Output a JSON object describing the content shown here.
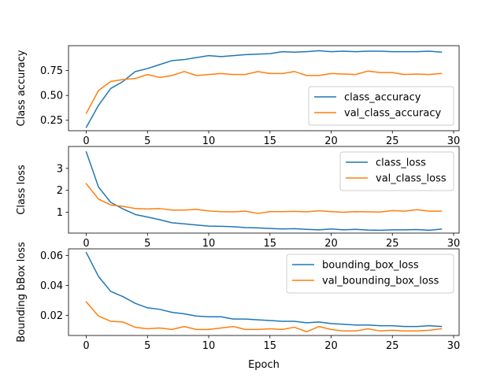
{
  "chart_data": [
    {
      "type": "line",
      "xlabel": "",
      "ylabel": "Class accuracy",
      "xlim": [
        -1.45,
        30.45
      ],
      "ylim": [
        0.145,
        1.0
      ],
      "xticks": [
        0,
        5,
        10,
        15,
        20,
        25,
        30
      ],
      "xtick_labels": [
        "0",
        "5",
        "10",
        "15",
        "20",
        "25",
        "30"
      ],
      "yticks": [
        0.25,
        0.5,
        0.75
      ],
      "ytick_labels": [
        "0.25",
        "0.50",
        "0.75"
      ],
      "legend": "lower right",
      "grid": false,
      "x": [
        0,
        1,
        2,
        3,
        4,
        5,
        6,
        7,
        8,
        9,
        10,
        11,
        12,
        13,
        14,
        15,
        16,
        17,
        18,
        19,
        20,
        21,
        22,
        23,
        24,
        25,
        26,
        27,
        28,
        29
      ],
      "series": [
        {
          "name": "class_accuracy",
          "color": "#1f77b4",
          "values": [
            0.18,
            0.4,
            0.57,
            0.64,
            0.74,
            0.77,
            0.81,
            0.85,
            0.86,
            0.88,
            0.9,
            0.89,
            0.9,
            0.91,
            0.915,
            0.92,
            0.94,
            0.935,
            0.94,
            0.95,
            0.94,
            0.945,
            0.94,
            0.945,
            0.945,
            0.94,
            0.94,
            0.94,
            0.945,
            0.935
          ]
        },
        {
          "name": "val_class_accuracy",
          "color": "#ff7f0e",
          "values": [
            0.32,
            0.55,
            0.64,
            0.66,
            0.67,
            0.71,
            0.68,
            0.7,
            0.74,
            0.7,
            0.71,
            0.72,
            0.71,
            0.71,
            0.74,
            0.72,
            0.72,
            0.74,
            0.7,
            0.7,
            0.72,
            0.715,
            0.71,
            0.745,
            0.73,
            0.73,
            0.71,
            0.715,
            0.71,
            0.72
          ]
        }
      ]
    },
    {
      "type": "line",
      "xlabel": "",
      "ylabel": "Class loss",
      "xlim": [
        -1.45,
        30.45
      ],
      "ylim": [
        0.05,
        4.0
      ],
      "xticks": [
        0,
        5,
        10,
        15,
        20,
        25,
        30
      ],
      "xtick_labels": [
        "0",
        "5",
        "10",
        "15",
        "20",
        "25",
        "30"
      ],
      "yticks": [
        1,
        2,
        3
      ],
      "ytick_labels": [
        "1",
        "2",
        "3"
      ],
      "legend": "upper right",
      "grid": false,
      "x": [
        0,
        1,
        2,
        3,
        4,
        5,
        6,
        7,
        8,
        9,
        10,
        11,
        12,
        13,
        14,
        15,
        16,
        17,
        18,
        19,
        20,
        21,
        22,
        23,
        24,
        25,
        26,
        27,
        28,
        29
      ],
      "series": [
        {
          "name": "class_loss",
          "color": "#1f77b4",
          "values": [
            3.75,
            2.15,
            1.45,
            1.15,
            0.9,
            0.78,
            0.66,
            0.52,
            0.47,
            0.42,
            0.37,
            0.36,
            0.34,
            0.3,
            0.29,
            0.26,
            0.24,
            0.25,
            0.22,
            0.2,
            0.24,
            0.2,
            0.22,
            0.19,
            0.18,
            0.2,
            0.2,
            0.21,
            0.18,
            0.23
          ]
        },
        {
          "name": "val_class_loss",
          "color": "#ff7f0e",
          "values": [
            2.3,
            1.6,
            1.33,
            1.27,
            1.17,
            1.15,
            1.17,
            1.1,
            1.1,
            1.13,
            1.06,
            1.03,
            1.02,
            1.05,
            0.95,
            1.03,
            1.03,
            1.04,
            1.02,
            1.07,
            1.03,
            1.0,
            1.03,
            1.02,
            1.01,
            1.08,
            1.05,
            1.12,
            1.05,
            1.05
          ]
        }
      ]
    },
    {
      "type": "line",
      "xlabel": "Epoch",
      "ylabel": "Bounding bBox loss",
      "xlim": [
        -1.45,
        30.45
      ],
      "ylim": [
        0.0065,
        0.0645
      ],
      "xticks": [
        0,
        5,
        10,
        15,
        20,
        25,
        30
      ],
      "xtick_labels": [
        "0",
        "5",
        "10",
        "15",
        "20",
        "25",
        "30"
      ],
      "yticks": [
        0.02,
        0.04,
        0.06
      ],
      "ytick_labels": [
        "0.02",
        "0.04",
        "0.06"
      ],
      "legend": "upper right",
      "grid": false,
      "x": [
        0,
        1,
        2,
        3,
        4,
        5,
        6,
        7,
        8,
        9,
        10,
        11,
        12,
        13,
        14,
        15,
        16,
        17,
        18,
        19,
        20,
        21,
        22,
        23,
        24,
        25,
        26,
        27,
        28,
        29
      ],
      "series": [
        {
          "name": "bounding_box_loss",
          "color": "#1f77b4",
          "values": [
            0.062,
            0.046,
            0.036,
            0.0325,
            0.028,
            0.025,
            0.024,
            0.022,
            0.021,
            0.0195,
            0.019,
            0.019,
            0.0175,
            0.0175,
            0.017,
            0.0165,
            0.016,
            0.016,
            0.015,
            0.0155,
            0.0145,
            0.014,
            0.0135,
            0.0135,
            0.013,
            0.013,
            0.0125,
            0.0125,
            0.013,
            0.0125
          ]
        },
        {
          "name": "val_bounding_box_loss",
          "color": "#ff7f0e",
          "values": [
            0.029,
            0.0195,
            0.016,
            0.0155,
            0.012,
            0.011,
            0.0115,
            0.0105,
            0.0125,
            0.0105,
            0.0105,
            0.0115,
            0.0125,
            0.0105,
            0.0105,
            0.011,
            0.0105,
            0.012,
            0.009,
            0.0125,
            0.0105,
            0.0095,
            0.0095,
            0.011,
            0.0095,
            0.01,
            0.0095,
            0.0095,
            0.01,
            0.011
          ]
        }
      ]
    }
  ]
}
